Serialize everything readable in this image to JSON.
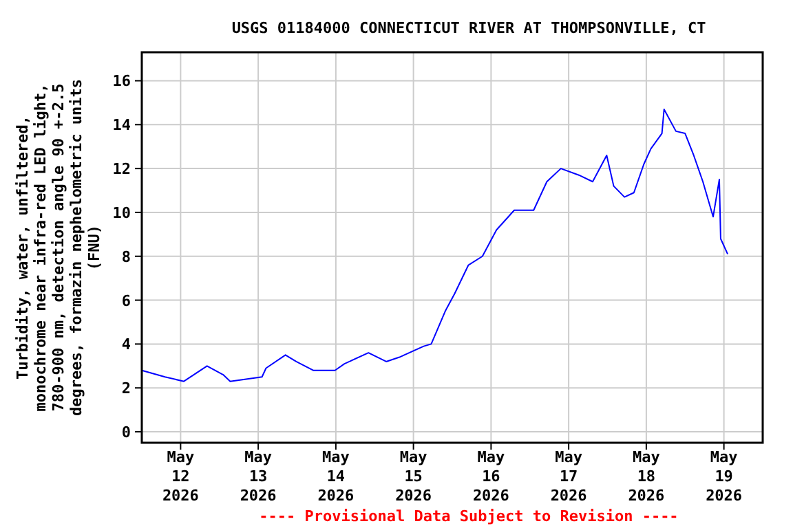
{
  "chart_data": {
    "type": "line",
    "title": "USGS 01184000 CONNECTICUT RIVER AT THOMPSONVILLE, CT",
    "ylabel": "Turbidity, water, unfiltered,\nmonochrome near infra-red LED light,\n780-900 nm, detection angle 90 +-2.5\ndegrees, formazin nephelometric units\n(FNU)",
    "annotations": [
      "---- Provisional Data Subject to Revision ----"
    ],
    "x": [
      "2026-05-11T12:00",
      "2026-05-11T19:10",
      "2026-05-12T01:00",
      "2026-05-12T08:10",
      "2026-05-12T13:10",
      "2026-05-12T15:20",
      "2026-05-13T01:10",
      "2026-05-13T02:25",
      "2026-05-13T08:25",
      "2026-05-13T11:45",
      "2026-05-13T17:00",
      "2026-05-13T23:45",
      "2026-05-14T02:40",
      "2026-05-14T10:05",
      "2026-05-14T15:35",
      "2026-05-14T19:40",
      "2026-05-14T21:10",
      "2026-05-15T03:10",
      "2026-05-15T05:30",
      "2026-05-15T09:50",
      "2026-05-15T12:45",
      "2026-05-15T17:00",
      "2026-05-15T21:20",
      "2026-05-16T01:40",
      "2026-05-16T07:10",
      "2026-05-16T13:10",
      "2026-05-16T17:15",
      "2026-05-16T21:35",
      "2026-05-17T03:10",
      "2026-05-17T07:25",
      "2026-05-17T11:45",
      "2026-05-17T13:55",
      "2026-05-17T17:15",
      "2026-05-17T20:10",
      "2026-05-17T23:15",
      "2026-05-18T01:25",
      "2026-05-18T04:50",
      "2026-05-18T05:30",
      "2026-05-18T09:10",
      "2026-05-18T12:00",
      "2026-05-18T14:40",
      "2026-05-18T17:30",
      "2026-05-18T20:40",
      "2026-05-18T22:35",
      "2026-05-18T23:00",
      "2026-05-19T01:10"
    ],
    "series": [
      {
        "color": "#0000ff",
        "values": [
          2.8,
          2.5,
          2.3,
          3.0,
          2.6,
          2.3,
          2.5,
          2.9,
          3.5,
          3.2,
          2.8,
          2.8,
          3.1,
          3.6,
          3.2,
          3.4,
          3.5,
          3.9,
          4.0,
          5.5,
          6.3,
          7.6,
          8.0,
          9.2,
          10.1,
          10.1,
          11.4,
          12.0,
          11.7,
          11.4,
          12.6,
          11.2,
          10.7,
          10.9,
          12.2,
          12.9,
          13.6,
          14.7,
          13.7,
          13.6,
          12.6,
          11.4,
          9.8,
          11.5,
          8.8,
          8.1
        ]
      }
    ],
    "xlim": [
      "2026-05-11T12:00",
      "2026-05-19T12:00"
    ],
    "xticks": [
      {
        "value": "2026-05-12T00:00",
        "label": "May\n12\n2026"
      },
      {
        "value": "2026-05-13T00:00",
        "label": "May\n13\n2026"
      },
      {
        "value": "2026-05-14T00:00",
        "label": "May\n14\n2026"
      },
      {
        "value": "2026-05-15T00:00",
        "label": "May\n15\n2026"
      },
      {
        "value": "2026-05-16T00:00",
        "label": "May\n16\n2026"
      },
      {
        "value": "2026-05-17T00:00",
        "label": "May\n17\n2026"
      },
      {
        "value": "2026-05-18T00:00",
        "label": "May\n18\n2026"
      },
      {
        "value": "2026-05-19T00:00",
        "label": "May\n19\n2026"
      }
    ],
    "ylim": [
      -0.5,
      17.3
    ],
    "yticks": [
      0,
      2,
      4,
      6,
      8,
      10,
      12,
      14,
      16
    ],
    "grid": true
  }
}
